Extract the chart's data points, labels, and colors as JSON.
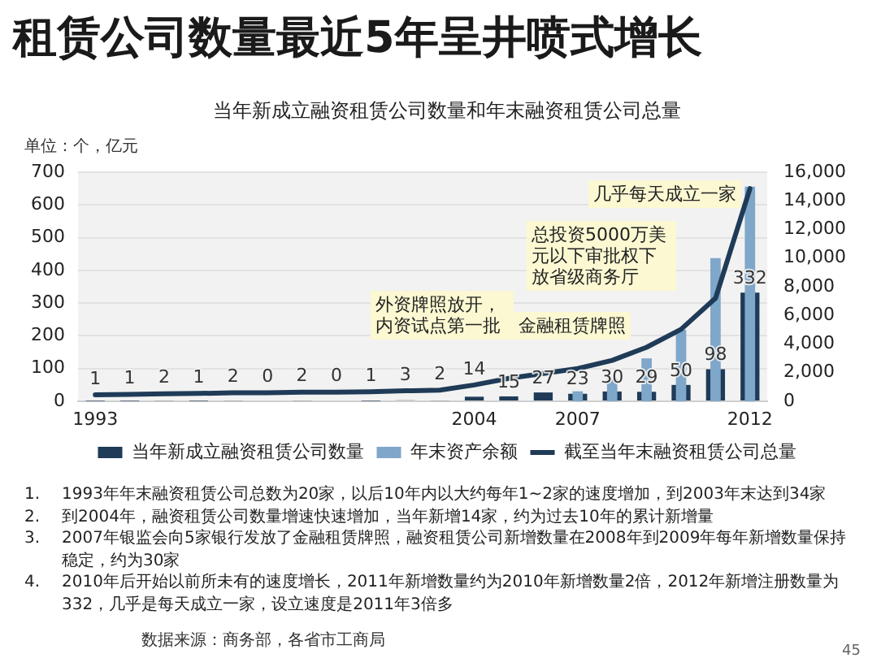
{
  "chart_data": {
    "type": "bar",
    "title": "租赁公司数量最近5年呈井喷式增长",
    "subtitle": "当年新成立融资租赁公司数量和年末融资租赁公司总量",
    "ylabel": "单位：个，亿元",
    "categories": [
      "1993",
      null,
      null,
      null,
      null,
      null,
      null,
      null,
      null,
      null,
      null,
      "2004",
      null,
      null,
      "2007",
      null,
      null,
      null,
      null,
      "2012"
    ],
    "series": [
      {
        "name": "当年新成立融资租赁公司数量",
        "color": "#1f3b57",
        "values": [
          1,
          1,
          2,
          1,
          2,
          0,
          2,
          0,
          1,
          3,
          2,
          14,
          15,
          27,
          23,
          30,
          29,
          50,
          98,
          332
        ],
        "value_labels": [
          "1",
          "1",
          "2",
          "1",
          "2",
          "0",
          "2",
          "0",
          "1",
          "3",
          "2",
          "14",
          "15",
          "27",
          "23",
          "30",
          "29",
          "50",
          "98",
          "332"
        ]
      },
      {
        "name": "年末资产余额",
        "color": "#7fa7c9",
        "axis": "y2",
        "values": [
          null,
          null,
          null,
          null,
          null,
          null,
          null,
          null,
          null,
          null,
          null,
          null,
          null,
          null,
          700,
          1600,
          3000,
          5000,
          10000,
          15000
        ]
      },
      {
        "name": "截至当年末融资租赁公司总量",
        "type": "line",
        "color": "#1f3b57",
        "values": [
          20,
          21,
          23,
          24,
          26,
          26,
          28,
          28,
          29,
          32,
          34,
          50,
          70,
          85,
          100,
          125,
          165,
          220,
          315,
          650
        ]
      }
    ],
    "ylim": [
      0,
      700
    ],
    "yticks": [
      0,
      100,
      200,
      300,
      400,
      500,
      600,
      700
    ],
    "y2lim": [
      0,
      16000
    ],
    "y2ticks": [
      0,
      {
        "value": 2000,
        "label": "2,000"
      },
      {
        "value": 4000,
        "label": "4,000"
      },
      {
        "value": 6000,
        "label": "6,000"
      },
      {
        "value": 8000,
        "label": "8,000"
      },
      {
        "value": 10000,
        "label": "10,000"
      },
      {
        "value": 12000,
        "label": "12,000"
      },
      {
        "value": 14000,
        "label": "14,000"
      },
      {
        "value": 16000,
        "label": "16,000"
      }
    ],
    "grid": "y",
    "legend": "bottom",
    "marker": "none",
    "annotations": [
      "外资牌照放开，内资试点第一批",
      "金融租赁牌照",
      "总投资5000万美元以下审批权下放省级商务厅",
      "几乎每天成立一家",
      "1. 1993年年末融资租赁公司总数为20家，以后10年内以大约每年1~2家的速度增加，到2003年末达到34家",
      "2. 到2004年，融资租赁公司数量增速快速增加，当年新增14家，约为过去10年的累计新增量",
      "3. 2007年银监会向5家银行发放了金融租赁牌照，融资租赁公司新增数量在2008年到2009年每年新增数量保持稳定，约为30家",
      "4. 2010年后开始以前所未有的速度增长，2011年新增数量约为2010年新增数量2倍，2012年新增注册数量为332，几乎是每天成立一家，设立速度是2011年3倍多",
      "数据来源：商务部，各省市工商局",
      "45"
    ]
  }
}
